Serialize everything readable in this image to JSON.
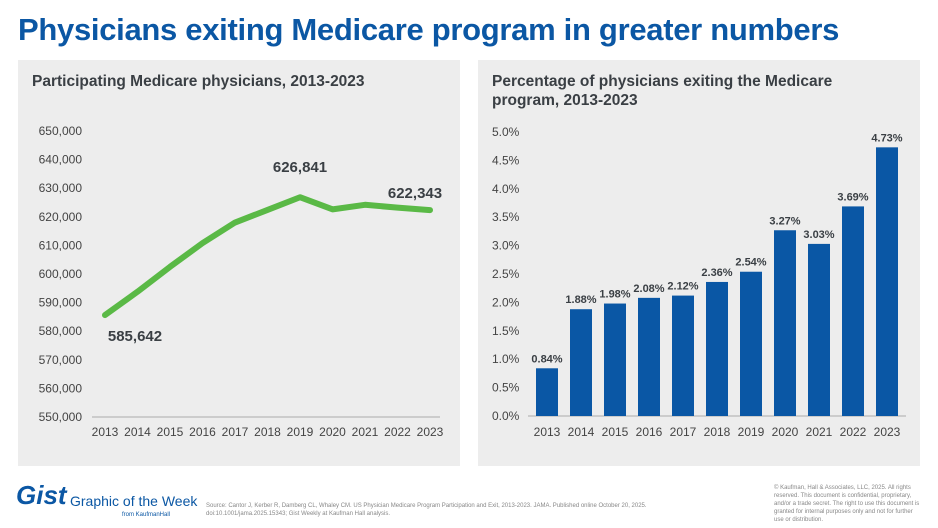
{
  "title": "Physicians exiting Medicare program in greater numbers",
  "footer": {
    "logo": "Gist",
    "subtitle": "Graphic of the Week",
    "from": "from KaufmanHall",
    "source": "Source: Cantor J, Kerber R, Damberg CL, Whaley CM. US Physician Medicare Program Participation and Exit, 2013-2023. JAMA. Published online October 20, 2025. doi:10.1001/jama.2025.15343; Gist Weekly at Kaufman Hall analysis.",
    "copyright": "© Kaufman, Hall & Associates, LLC, 2025. All rights reserved. This document is confidential, proprietary, and/or a trade secret. The right to use this document is granted for internal purposes only and not for further use or distribution."
  },
  "colors": {
    "title": "#0b57a4",
    "line": "#5ab946",
    "bar": "#0a57a5",
    "panel": "#ededed"
  },
  "chart_data": [
    {
      "type": "line",
      "title": "Participating Medicare physicians, 2013-2023",
      "x": [
        "2013",
        "2014",
        "2015",
        "2016",
        "2017",
        "2018",
        "2019",
        "2020",
        "2021",
        "2022",
        "2023"
      ],
      "values": [
        585642,
        593800,
        602500,
        610800,
        618000,
        622400,
        626841,
        622600,
        624200,
        623200,
        622343
      ],
      "data_labels": {
        "2013": "585,642",
        "2019": "626,841",
        "2023": "622,343"
      },
      "ylim": [
        550000,
        650000
      ],
      "yticks": [
        "550,000",
        "560,000",
        "570,000",
        "580,000",
        "590,000",
        "600,000",
        "610,000",
        "620,000",
        "630,000",
        "640,000",
        "650,000"
      ],
      "grid": false
    },
    {
      "type": "bar",
      "title": "Percentage of physicians exiting the Medicare program, 2013-2023",
      "categories": [
        "2013",
        "2014",
        "2015",
        "2016",
        "2017",
        "2018",
        "2019",
        "2020",
        "2021",
        "2022",
        "2023"
      ],
      "values": [
        0.84,
        1.88,
        1.98,
        2.08,
        2.12,
        2.36,
        2.54,
        3.27,
        3.03,
        3.69,
        4.73
      ],
      "data_labels": [
        "0.84%",
        "1.88%",
        "1.98%",
        "2.08%",
        "2.12%",
        "2.36%",
        "2.54%",
        "3.27%",
        "3.03%",
        "3.69%",
        "4.73%"
      ],
      "ylim": [
        0,
        5
      ],
      "yticks": [
        "0.0%",
        "0.5%",
        "1.0%",
        "1.5%",
        "2.0%",
        "2.5%",
        "3.0%",
        "3.5%",
        "4.0%",
        "4.5%",
        "5.0%"
      ],
      "grid": false
    }
  ]
}
